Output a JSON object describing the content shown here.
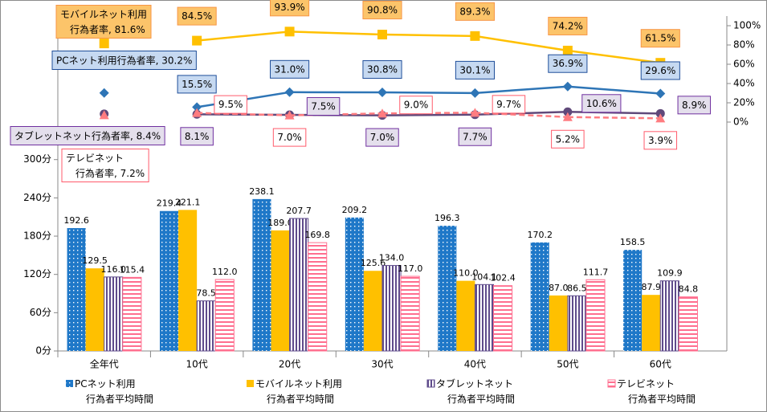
{
  "chart_data": {
    "type": "bar",
    "categories": [
      "全年代",
      "10代",
      "20代",
      "30代",
      "40代",
      "50代",
      "60代"
    ],
    "ylim": [
      0,
      525
    ],
    "yticks": [
      {
        "value": 0,
        "label": "0分"
      },
      {
        "value": 60,
        "label": "60分"
      },
      {
        "value": 120,
        "label": "120分"
      },
      {
        "value": 180,
        "label": "180分"
      },
      {
        "value": 240,
        "label": "240分"
      },
      {
        "value": 300,
        "label": "300分"
      }
    ],
    "y2lim": [
      -237.5,
      110
    ],
    "y2ticks": [
      {
        "value": 0,
        "label": "0%"
      },
      {
        "value": 20,
        "label": "20%"
      },
      {
        "value": 40,
        "label": "40%"
      },
      {
        "value": 60,
        "label": "60%"
      },
      {
        "value": 80,
        "label": "80%"
      },
      {
        "value": 100,
        "label": "100%"
      }
    ],
    "series": [
      {
        "name": "PCネット利用\n行為者平均時間",
        "color": "#1f78c8",
        "pattern": "dots",
        "values": [
          192.6,
          219.4,
          238.1,
          209.2,
          196.3,
          170.2,
          158.5
        ],
        "value_labels": [
          "192.6",
          "219.4",
          "238.1",
          "209.2",
          "196.3",
          "170.2",
          "158.5"
        ]
      },
      {
        "name": "モバイルネット利用\n行為者平均時間",
        "color": "#ffc000",
        "pattern": "solid",
        "values": [
          129.5,
          221.1,
          189.0,
          125.6,
          110.0,
          87.0,
          87.9
        ],
        "value_labels": [
          "129.5",
          "221.1",
          "189.0",
          "125.6",
          "110.0",
          "87.0",
          "87.9"
        ]
      },
      {
        "name": "タブレットネット\n行為者平均時間",
        "color": "#5f4b8b",
        "pattern": "vstripes",
        "values": [
          116.0,
          78.5,
          207.7,
          134.0,
          104.1,
          86.5,
          109.9
        ],
        "value_labels": [
          "116.0",
          "78.5",
          "207.7",
          "134.0",
          "104.1",
          "86.5",
          "109.9"
        ]
      },
      {
        "name": "テレビネット\n行為者平均時間",
        "color": "#ff6f8f",
        "pattern": "hstripes",
        "values": [
          115.4,
          112.0,
          169.8,
          117.0,
          102.4,
          111.7,
          84.8
        ],
        "value_labels": [
          "115.4",
          "112.0",
          "169.8",
          "117.0",
          "102.4",
          "111.7",
          "84.8"
        ]
      },
      {
        "type": "line",
        "axis": "y2",
        "color": "#ffc000",
        "marker": "square",
        "label_fill": "#fcc46a",
        "label_stroke": "#f79646",
        "values": [
          81.6,
          84.5,
          93.9,
          90.8,
          89.3,
          74.2,
          61.5
        ],
        "value_labels": [
          "モバイルネット利用\n行為者率, 81.6%",
          "84.5%",
          "93.9%",
          "90.8%",
          "89.3%",
          "74.2%",
          "61.5%"
        ]
      },
      {
        "type": "line",
        "axis": "y2",
        "color": "#2e75b6",
        "marker": "diamond",
        "label_fill": "#c6d9f1",
        "label_stroke": "#1f4e9a",
        "values": [
          30.2,
          15.5,
          31.0,
          30.8,
          30.1,
          36.9,
          29.6
        ],
        "value_labels": [
          "PCネット利用行為者率, 30.2%",
          "15.5%",
          "31.0%",
          "30.8%",
          "30.1%",
          "36.9%",
          "29.6%"
        ]
      },
      {
        "type": "line",
        "axis": "y2",
        "color": "#60497a",
        "marker": "circle",
        "label_fill": "#e4dfec",
        "label_stroke": "#7030a0",
        "values": [
          8.4,
          8.1,
          7.5,
          7.0,
          7.7,
          10.6,
          8.9
        ],
        "value_labels": [
          "タブレットネット行為者率, 8.4%",
          "8.1%",
          "7.5%",
          "7.0%",
          "7.7%",
          "10.6%",
          "8.9%"
        ]
      },
      {
        "type": "line",
        "axis": "y2",
        "color": "#ff7c80",
        "marker": "triangle",
        "dash": true,
        "label_fill": "#ffffff",
        "label_stroke": "#ff5b6b",
        "values": [
          7.2,
          9.5,
          7.0,
          9.0,
          9.7,
          5.2,
          3.9
        ],
        "value_labels": [
          "テレビネット\n行為者率, 7.2%",
          "9.5%",
          "7.0%",
          "9.0%",
          "9.7%",
          "5.2%",
          "3.9%"
        ]
      }
    ]
  }
}
